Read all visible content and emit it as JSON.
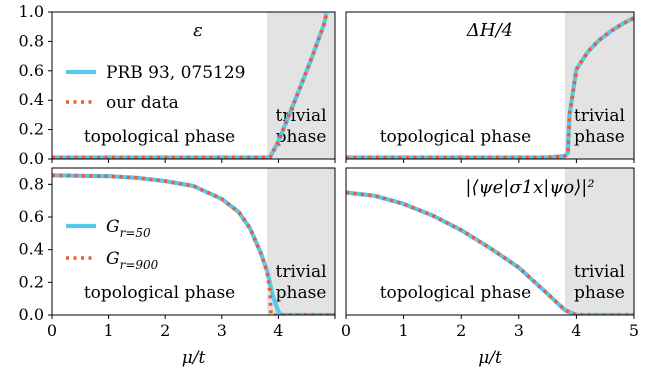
{
  "chart_data": [
    {
      "type": "line",
      "title": "ε",
      "xlabel": "",
      "ylabel": "",
      "xlim": [
        0,
        5
      ],
      "ylim": [
        0,
        1.0
      ],
      "yticks": [
        "0.0",
        "0.2",
        "0.4",
        "0.6",
        "0.8",
        "1.0"
      ],
      "xticks": [],
      "shade_from": 3.8,
      "region_left": "topological phase",
      "region_right": [
        "trivial",
        "phase"
      ],
      "legend": [
        "PRB 93, 075129",
        "our data"
      ],
      "series": [
        {
          "name": "PRB 93, 075129",
          "style": "solid",
          "x": [
            0,
            1,
            2,
            3,
            3.5,
            3.8,
            3.85,
            4.0,
            4.2,
            4.4,
            4.6,
            4.8,
            4.85
          ],
          "y": [
            0.01,
            0.01,
            0.01,
            0.01,
            0.01,
            0.01,
            0.01,
            0.12,
            0.31,
            0.5,
            0.7,
            0.91,
            0.99
          ]
        },
        {
          "name": "our data",
          "style": "dotted",
          "x": [
            0,
            1,
            2,
            3,
            3.5,
            3.8,
            3.85,
            4.0,
            4.2,
            4.4,
            4.6,
            4.8,
            4.85
          ],
          "y": [
            0.01,
            0.01,
            0.01,
            0.01,
            0.01,
            0.01,
            0.01,
            0.12,
            0.31,
            0.5,
            0.7,
            0.91,
            0.99
          ]
        }
      ]
    },
    {
      "type": "line",
      "title": "ΔH/4",
      "xlabel": "",
      "ylabel": "",
      "xlim": [
        0,
        5
      ],
      "ylim": [
        0,
        1.0
      ],
      "yticks": [],
      "xticks": [],
      "shade_from": 3.8,
      "region_left": "topological phase",
      "region_right": [
        "trivial",
        "phase"
      ],
      "series": [
        {
          "name": "PRB 93, 075129",
          "style": "solid",
          "x": [
            0,
            1,
            2,
            3,
            3.5,
            3.8,
            3.85,
            3.88,
            4.0,
            4.2,
            4.4,
            4.6,
            4.8,
            5.0
          ],
          "y": [
            0.01,
            0.01,
            0.01,
            0.01,
            0.01,
            0.02,
            0.04,
            0.3,
            0.61,
            0.73,
            0.81,
            0.87,
            0.92,
            0.96
          ]
        },
        {
          "name": "our data",
          "style": "dotted",
          "x": [
            0,
            1,
            2,
            3,
            3.5,
            3.8,
            3.85,
            3.88,
            4.0,
            4.2,
            4.4,
            4.6,
            4.8,
            5.0
          ],
          "y": [
            0.01,
            0.01,
            0.01,
            0.01,
            0.01,
            0.02,
            0.04,
            0.3,
            0.61,
            0.73,
            0.81,
            0.87,
            0.92,
            0.96
          ]
        }
      ]
    },
    {
      "type": "line",
      "title": "",
      "xlabel": "μ/t",
      "ylabel": "",
      "xlim": [
        0,
        5
      ],
      "ylim": [
        0,
        0.9
      ],
      "yticks": [
        "0.0",
        "0.2",
        "0.4",
        "0.6",
        "0.8"
      ],
      "xticks": [
        "0",
        "1",
        "2",
        "3",
        "4"
      ],
      "shade_from": 3.8,
      "region_left": "topological phase",
      "region_right": [
        "trivial",
        "phase"
      ],
      "legend": [
        "G_{r=50}",
        "G_{r=900}"
      ],
      "series": [
        {
          "name": "G_{r=50}",
          "style": "solid",
          "x": [
            0,
            0.5,
            1,
            1.5,
            2,
            2.5,
            3,
            3.3,
            3.5,
            3.7,
            3.8,
            3.9,
            4.0,
            4.05,
            4.5,
            5.0
          ],
          "y": [
            0.855,
            0.852,
            0.85,
            0.84,
            0.82,
            0.79,
            0.71,
            0.63,
            0.53,
            0.37,
            0.27,
            0.12,
            0.02,
            0.0,
            0.0,
            0.0
          ]
        },
        {
          "name": "G_{r=900}",
          "style": "dotted",
          "x": [
            0,
            0.5,
            1,
            1.5,
            2,
            2.5,
            3,
            3.3,
            3.5,
            3.7,
            3.8,
            3.85,
            3.87,
            3.9,
            4.5,
            5.0
          ],
          "y": [
            0.855,
            0.852,
            0.85,
            0.84,
            0.82,
            0.79,
            0.71,
            0.63,
            0.53,
            0.37,
            0.26,
            0.15,
            0.0,
            0.0,
            0.0,
            0.0
          ]
        }
      ]
    },
    {
      "type": "line",
      "title": "|⟨ψe|σ1x|ψo⟩|²",
      "xlabel": "μ/t",
      "ylabel": "",
      "xlim": [
        0,
        5
      ],
      "ylim": [
        0,
        0.9
      ],
      "yticks": [],
      "xticks": [
        "0",
        "1",
        "2",
        "3",
        "4",
        "5"
      ],
      "shade_from": 3.8,
      "region_left": "topological phase",
      "region_right": [
        "trivial",
        "phase"
      ],
      "series": [
        {
          "name": "G_{r=50}",
          "style": "solid",
          "x": [
            0,
            0.5,
            1,
            1.5,
            2,
            2.5,
            3,
            3.5,
            3.8,
            4.0,
            4.5,
            5.0
          ],
          "y": [
            0.75,
            0.73,
            0.68,
            0.61,
            0.52,
            0.41,
            0.29,
            0.13,
            0.03,
            0.0,
            0.0,
            0.0
          ]
        },
        {
          "name": "G_{r=900}",
          "style": "dotted",
          "x": [
            0,
            0.5,
            1,
            1.5,
            2,
            2.5,
            3,
            3.5,
            3.8,
            4.0,
            4.5,
            5.0
          ],
          "y": [
            0.75,
            0.73,
            0.68,
            0.61,
            0.52,
            0.41,
            0.29,
            0.13,
            0.03,
            0.0,
            0.0,
            0.0
          ]
        }
      ]
    }
  ],
  "colors": {
    "solid": "#57c8ec",
    "dotted": "#ef5a35",
    "shade": "#e3e3e3"
  }
}
